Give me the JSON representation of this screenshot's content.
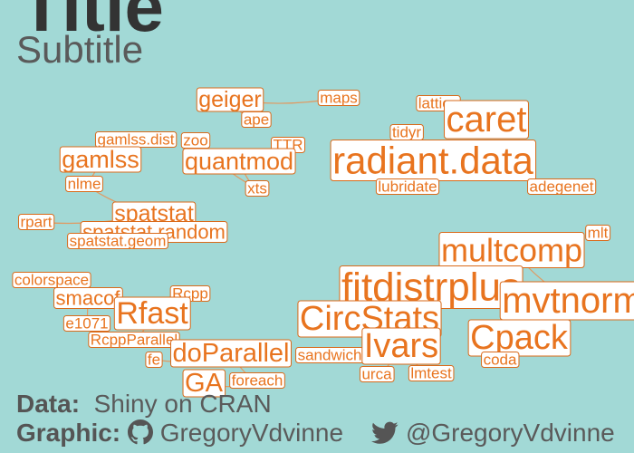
{
  "header": {
    "title": "Title",
    "subtitle": "Subtitle"
  },
  "caption": {
    "data_label": "Data:",
    "data_value": "Shiny on CRAN",
    "graphic_label": "Graphic:",
    "github_handle": "GregoryVdvinne",
    "twitter_handle": "@GregoryVdvinne",
    "github_icon": "github-icon",
    "twitter_icon": "twitter-icon"
  },
  "colors": {
    "background": "#a2d9d6",
    "label_text": "#e8741f",
    "label_border": "#d96a1a",
    "edge": "#e09a62"
  },
  "chart_data": {
    "type": "network",
    "nodes": [
      {
        "id": "geiger",
        "size": 25
      },
      {
        "id": "ape",
        "size": 17
      },
      {
        "id": "maps",
        "size": 17
      },
      {
        "id": "lattice",
        "size": 17
      },
      {
        "id": "caret",
        "size": 40
      },
      {
        "id": "gamlss.dist",
        "size": 17
      },
      {
        "id": "zoo",
        "size": 17
      },
      {
        "id": "TTR",
        "size": 17
      },
      {
        "id": "gamlss",
        "size": 27
      },
      {
        "id": "quantmod",
        "size": 27
      },
      {
        "id": "tidyr",
        "size": 17
      },
      {
        "id": "radiant.data",
        "size": 42
      },
      {
        "id": "lubridate",
        "size": 17
      },
      {
        "id": "adegenet",
        "size": 17
      },
      {
        "id": "xts",
        "size": 17
      },
      {
        "id": "nlme",
        "size": 17
      },
      {
        "id": "spatstat",
        "size": 25
      },
      {
        "id": "rpart",
        "size": 17
      },
      {
        "id": "spatstat.random",
        "size": 22
      },
      {
        "id": "spatstat.geom",
        "size": 17
      },
      {
        "id": "mlt",
        "size": 17
      },
      {
        "id": "multcomp",
        "size": 36
      },
      {
        "id": "colorspace",
        "size": 17
      },
      {
        "id": "smacof",
        "size": 22
      },
      {
        "id": "Rcpp",
        "size": 17
      },
      {
        "id": "fitdistrplus",
        "size": 44
      },
      {
        "id": "mvtnorm",
        "size": 40
      },
      {
        "id": "e1071",
        "size": 17
      },
      {
        "id": "Rfast",
        "size": 34
      },
      {
        "id": "CircStats",
        "size": 38
      },
      {
        "id": "RcppParallel",
        "size": 17
      },
      {
        "id": "doParallel",
        "size": 29
      },
      {
        "id": "sandwich",
        "size": 17
      },
      {
        "id": "Ivars",
        "size": 38
      },
      {
        "id": "Cpack",
        "size": 38
      },
      {
        "id": "coda",
        "size": 17
      },
      {
        "id": "fe",
        "size": 17
      },
      {
        "id": "GA",
        "size": 29
      },
      {
        "id": "foreach",
        "size": 17
      },
      {
        "id": "urca",
        "size": 17
      },
      {
        "id": "lmtest",
        "size": 17
      }
    ],
    "edges": [
      [
        "geiger",
        "ape"
      ],
      [
        "geiger",
        "maps"
      ],
      [
        "gamlss.dist",
        "gamlss"
      ],
      [
        "zoo",
        "quantmod"
      ],
      [
        "TTR",
        "quantmod"
      ],
      [
        "quantmod",
        "xts"
      ],
      [
        "zoo",
        "xts"
      ],
      [
        "nlme",
        "gamlss"
      ],
      [
        "spatstat",
        "spatstat.random"
      ],
      [
        "spatstat.random",
        "spatstat.geom"
      ],
      [
        "rpart",
        "spatstat"
      ],
      [
        "nlme",
        "spatstat"
      ],
      [
        "smacof",
        "e1071"
      ],
      [
        "Rfast",
        "Rcpp"
      ],
      [
        "Rfast",
        "RcppParallel"
      ],
      [
        "doParallel",
        "foreach"
      ],
      [
        "doParallel",
        "fe"
      ],
      [
        "GA",
        "foreach"
      ],
      [
        "Ivars",
        "urca"
      ],
      [
        "Ivars",
        "lmtest"
      ],
      [
        "Ivars",
        "sandwich"
      ],
      [
        "Cpack",
        "coda"
      ],
      [
        "multcomp",
        "mvtnorm"
      ],
      [
        "fitdistrplus",
        "CircStats"
      ],
      [
        "tidyr",
        "radiant.data"
      ],
      [
        "lubridate",
        "radiant.data"
      ]
    ]
  }
}
